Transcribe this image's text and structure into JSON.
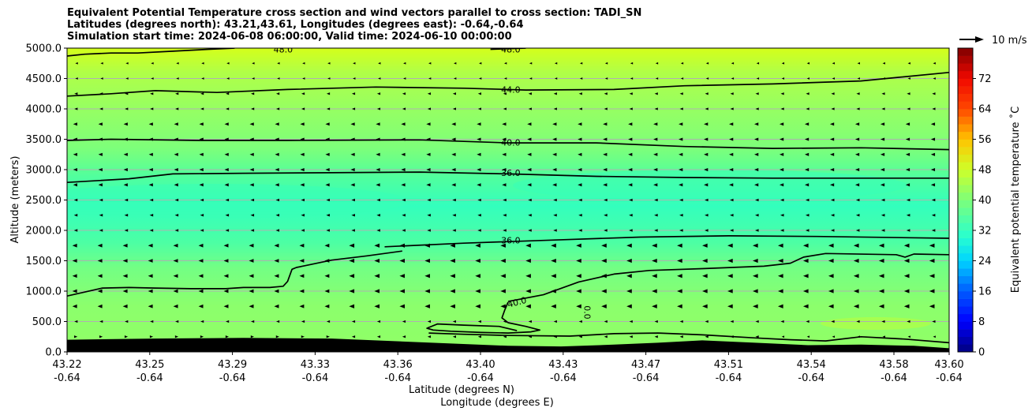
{
  "chart_data": {
    "type": "contour-cross-section",
    "title_lines": [
      "Equivalent Potential Temperature cross section and wind vectors parallel to cross section: TADI_SN",
      "Latitudes (degrees north): 43.21,43.61, Longitudes (degrees east): -0.64,-0.64",
      "Simulation start time: 2024-06-08 06:00:00, Valid time: 2024-06-10 00:00:00"
    ],
    "xlabel_line1": "Latitude (degrees N)",
    "xlabel_line2": "Longitude (degrees E)",
    "ylabel": "Altitude (meters)",
    "x_range": [
      43.22,
      43.6
    ],
    "x_ticks": [
      {
        "lat": "43.22",
        "lon": "-0.64"
      },
      {
        "lat": "43.25",
        "lon": "-0.64"
      },
      {
        "lat": "43.29",
        "lon": "-0.64"
      },
      {
        "lat": "43.33",
        "lon": "-0.64"
      },
      {
        "lat": "43.36",
        "lon": "-0.64"
      },
      {
        "lat": "43.40",
        "lon": "-0.64"
      },
      {
        "lat": "43.43",
        "lon": "-0.64"
      },
      {
        "lat": "43.47",
        "lon": "-0.64"
      },
      {
        "lat": "43.51",
        "lon": "-0.64"
      },
      {
        "lat": "43.54",
        "lon": "-0.64"
      },
      {
        "lat": "43.58",
        "lon": "-0.64"
      },
      {
        "lat": "43.60",
        "lon": "-0.64"
      }
    ],
    "y_range": [
      0,
      5000
    ],
    "y_ticks": [
      "0.0",
      "500.0",
      "1000.0",
      "1500.0",
      "2000.0",
      "2500.0",
      "3000.0",
      "3500.0",
      "4000.0",
      "4500.0",
      "5000.0"
    ],
    "grid": "horizontal",
    "colorbar": {
      "label": "Equivalent potential temperature ˚C",
      "range": [
        0,
        80
      ],
      "ticks": [
        "0",
        "8",
        "16",
        "24",
        "32",
        "40",
        "48",
        "56",
        "64",
        "72"
      ]
    },
    "contours": [
      {
        "label": "48.0",
        "points": [
          [
            0,
            4870
          ],
          [
            2,
            4900
          ],
          [
            5,
            4920
          ],
          [
            8,
            4920
          ],
          [
            12,
            4950
          ],
          [
            16,
            4980
          ],
          [
            19,
            5000
          ]
        ]
      },
      {
        "label": "48.0",
        "points": [
          [
            48,
            4980
          ],
          [
            52,
            5000
          ]
        ]
      },
      {
        "label": "44.0",
        "points": [
          [
            0,
            4210
          ],
          [
            5,
            4250
          ],
          [
            10,
            4300
          ],
          [
            17,
            4270
          ],
          [
            25,
            4320
          ],
          [
            35,
            4360
          ],
          [
            45,
            4340
          ],
          [
            52,
            4310
          ],
          [
            62,
            4320
          ],
          [
            70,
            4380
          ],
          [
            80,
            4410
          ],
          [
            90,
            4460
          ],
          [
            100,
            4600
          ]
        ]
      },
      {
        "label": "40.0",
        "points": [
          [
            0,
            3480
          ],
          [
            5,
            3500
          ],
          [
            15,
            3480
          ],
          [
            25,
            3480
          ],
          [
            40,
            3490
          ],
          [
            50,
            3440
          ],
          [
            60,
            3440
          ],
          [
            70,
            3380
          ],
          [
            80,
            3350
          ],
          [
            90,
            3360
          ],
          [
            100,
            3330
          ]
        ]
      },
      {
        "label": "36.0",
        "points": [
          [
            0,
            2790
          ],
          [
            7,
            2850
          ],
          [
            12,
            2930
          ],
          [
            20,
            2940
          ],
          [
            30,
            2950
          ],
          [
            40,
            2960
          ],
          [
            50,
            2930
          ],
          [
            60,
            2890
          ],
          [
            70,
            2870
          ],
          [
            80,
            2860
          ],
          [
            90,
            2860
          ],
          [
            100,
            2860
          ]
        ]
      },
      {
        "label": "36.0",
        "points": [
          [
            36,
            1730
          ],
          [
            45,
            1790
          ],
          [
            55,
            1840
          ],
          [
            65,
            1890
          ],
          [
            75,
            1910
          ],
          [
            85,
            1900
          ],
          [
            100,
            1870
          ]
        ]
      },
      {
        "label": "40.0",
        "points": [
          [
            0,
            920
          ],
          [
            4,
            1050
          ],
          [
            7,
            1060
          ],
          [
            10,
            1050
          ],
          [
            14,
            1040
          ],
          [
            18,
            1040
          ],
          [
            20,
            1060
          ],
          [
            23,
            1060
          ],
          [
            24.5,
            1080
          ],
          [
            25,
            1160
          ],
          [
            25.5,
            1360
          ],
          [
            26,
            1390
          ],
          [
            27,
            1420
          ],
          [
            30,
            1510
          ],
          [
            34,
            1580
          ],
          [
            38,
            1660
          ]
        ]
      },
      {
        "label": "40.0",
        "points": [
          [
            50,
            830
          ],
          [
            54,
            940
          ],
          [
            58,
            1150
          ],
          [
            62,
            1280
          ],
          [
            66,
            1340
          ],
          [
            72,
            1370
          ],
          [
            79,
            1410
          ],
          [
            82,
            1460
          ],
          [
            83.5,
            1560
          ],
          [
            86,
            1620
          ],
          [
            94,
            1600
          ],
          [
            95,
            1560
          ],
          [
            96,
            1610
          ],
          [
            100,
            1600
          ]
        ]
      },
      {
        "label": "0.0",
        "points": [
          [
            50,
            820
          ],
          [
            49.6,
            680
          ],
          [
            49.3,
            560
          ],
          [
            50,
            480
          ],
          [
            52,
            420
          ],
          [
            53.6,
            360
          ],
          [
            52.6,
            330
          ],
          [
            50,
            310
          ],
          [
            47,
            320
          ],
          [
            43.5,
            340
          ],
          [
            41.5,
            360
          ],
          [
            40.8,
            390
          ],
          [
            42,
            460
          ],
          [
            45,
            440
          ],
          [
            49,
            420
          ],
          [
            51,
            350
          ]
        ]
      },
      {
        "label": "",
        "points": [
          [
            41,
            310
          ],
          [
            45,
            290
          ],
          [
            50,
            270
          ],
          [
            57,
            260
          ],
          [
            62,
            300
          ],
          [
            67,
            310
          ],
          [
            72,
            280
          ],
          [
            78,
            230
          ],
          [
            82,
            200
          ],
          [
            86,
            180
          ],
          [
            90,
            250
          ],
          [
            95,
            210
          ],
          [
            100,
            150
          ]
        ]
      }
    ],
    "inline_labels": [
      {
        "text": "48.0",
        "x": 24.5,
        "y": 4980
      },
      {
        "text": "48.0",
        "x": 50.3,
        "y": 4980
      },
      {
        "text": "44.0",
        "x": 50.3,
        "y": 4315
      },
      {
        "text": "40.0",
        "x": 50.3,
        "y": 3450
      },
      {
        "text": "36.0",
        "x": 50.3,
        "y": 2945
      },
      {
        "text": "36.0",
        "x": 50.3,
        "y": 1840
      },
      {
        "text": "40.0",
        "x": 51,
        "y": 820
      },
      {
        "text": "0.0",
        "x": 59,
        "y": 650
      }
    ],
    "terrain": [
      [
        0,
        200
      ],
      [
        10,
        220
      ],
      [
        20,
        230
      ],
      [
        30,
        220
      ],
      [
        40,
        160
      ],
      [
        50,
        100
      ],
      [
        56,
        90
      ],
      [
        62,
        120
      ],
      [
        67,
        150
      ],
      [
        72,
        190
      ],
      [
        78,
        150
      ],
      [
        84,
        110
      ],
      [
        90,
        120
      ],
      [
        96,
        100
      ],
      [
        100,
        60
      ]
    ],
    "wind_reference": {
      "label": "10 m/s",
      "speed": 10
    }
  }
}
